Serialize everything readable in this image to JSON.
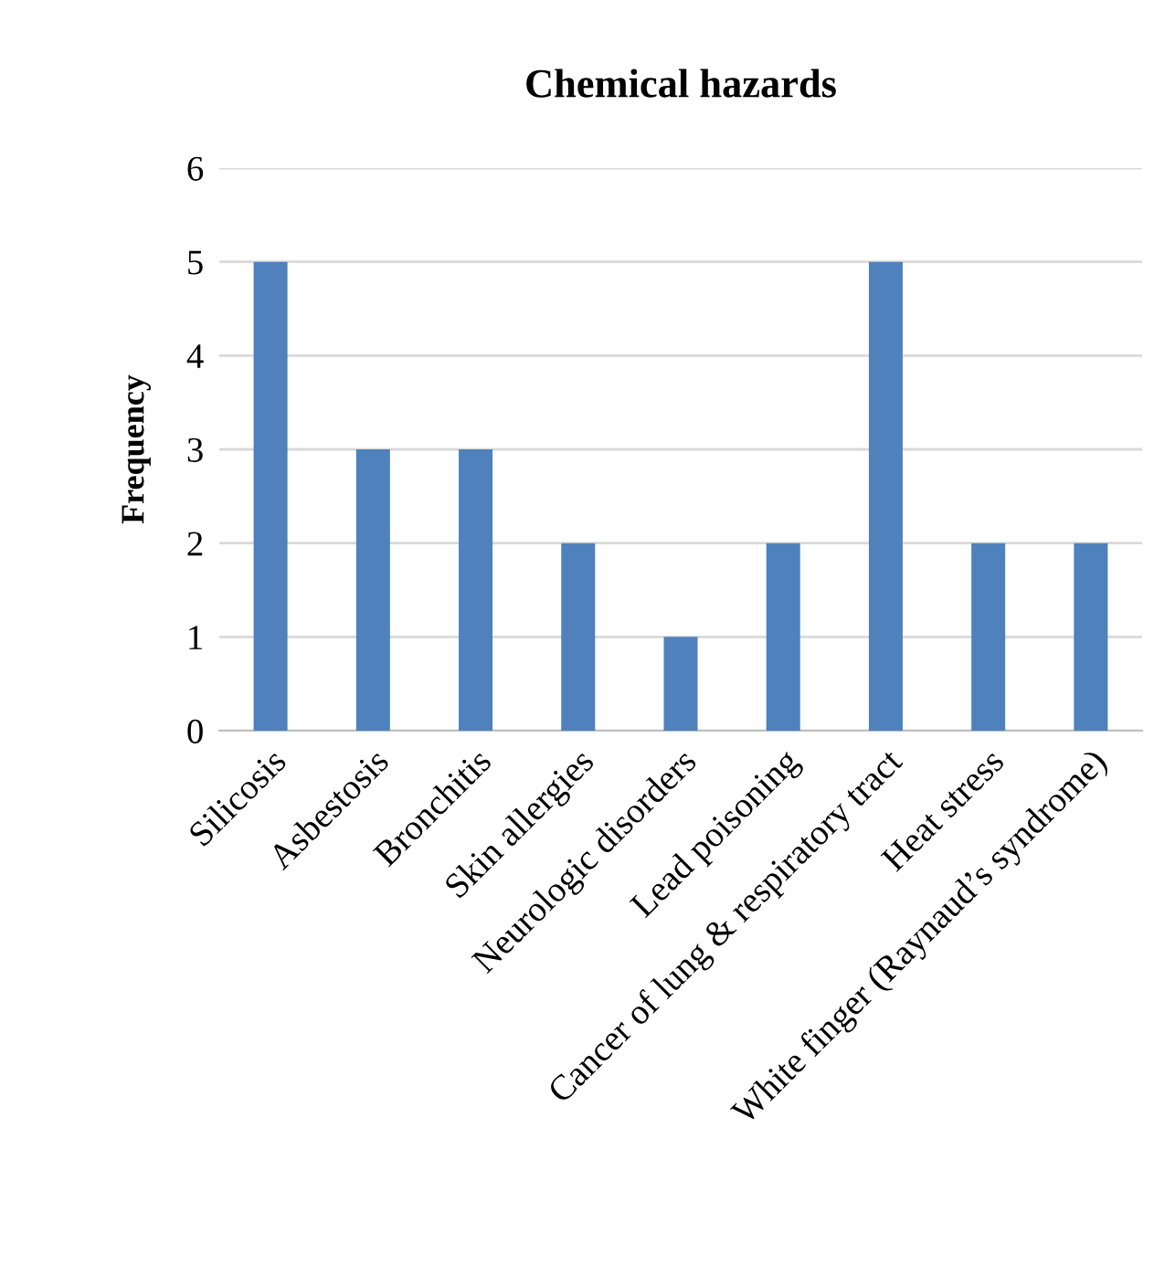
{
  "chart_data": {
    "type": "bar",
    "title": "Chemical hazards",
    "ylabel": "Frequency",
    "categories": [
      "Silicosis",
      "Asbestosis",
      "Bronchitis",
      "Skin allergies",
      "Neurologic disorders",
      "Lead poisoning",
      "Cancer of lung & respiratory tract",
      "Heat stress",
      "White finger (Raynaud’s syndrome)"
    ],
    "values": [
      5,
      3,
      3,
      2,
      1,
      2,
      5,
      2,
      2
    ],
    "color": "#4f81bd",
    "ylim": [
      0,
      6
    ],
    "yticks": [
      0,
      1,
      2,
      3,
      4,
      5,
      6
    ],
    "grid": "y",
    "legend": false
  }
}
